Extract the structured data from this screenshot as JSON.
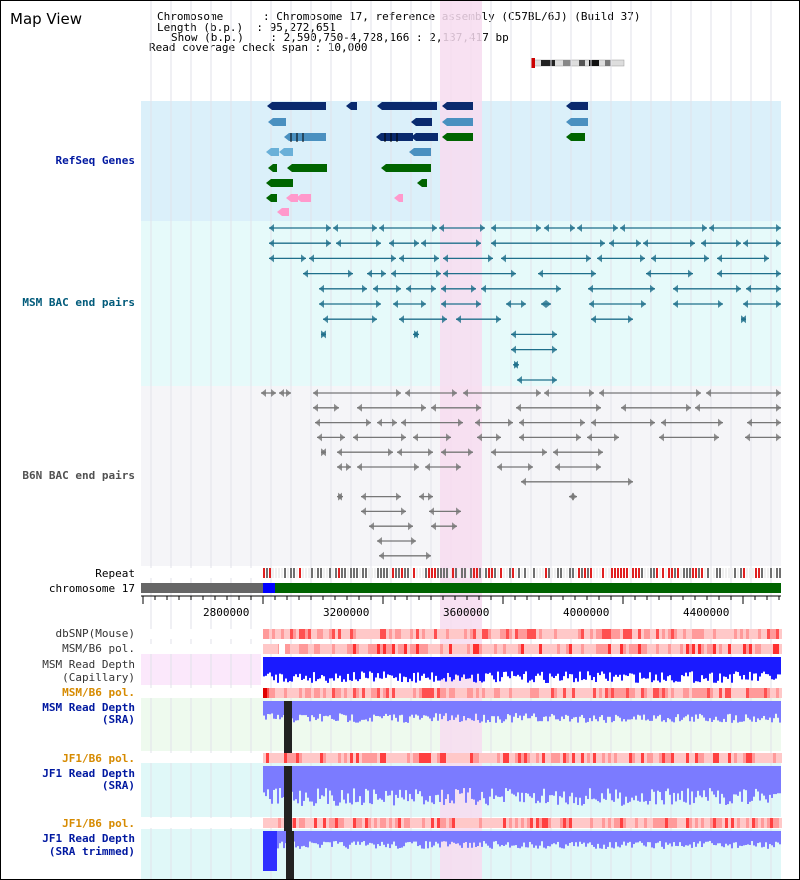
{
  "header": {
    "title": "Map View",
    "info_lines": [
      "Chromosome      : Chromosome 17, reference assembly (C57BL/6J) (Build 37)",
      "Length (b.p.)  : 95,272,651",
      "Show (b.p.)    : 2,590,750-4,728,166 : 2,137,417 bp",
      "Read coverage check span : 10,000"
    ]
  },
  "tracks": {
    "refseq": "RefSeq Genes",
    "msm_bac": "MSM BAC end pairs",
    "b6n_bac": "B6N BAC end pairs",
    "repeat": "Repeat",
    "chromosome": "chromosome 17",
    "dbsnp": "dbSNP(Mouse)",
    "msm_b6_pol_1": "MSM/B6 pol.",
    "msm_read_depth_cap_1": "MSM Read Depth",
    "msm_read_depth_cap_2": "(Capillary)",
    "msm_b6_pol_2": "MSM/B6 pol.",
    "msm_read_depth_sra_1": "MSM Read Depth",
    "msm_read_depth_sra_2": "(SRA)",
    "jf1_b6_pol_1": "JF1/B6 pol.",
    "jf1_read_depth_1": "JF1 Read Depth",
    "jf1_read_depth_2": "(SRA)",
    "jf1_b6_pol_2": "JF1/B6 pol.",
    "jf1_read_depth_trim_1": "JF1 Read Depth",
    "jf1_read_depth_trim_2": "(SRA trimmed)"
  },
  "axis": {
    "ticks": [
      "2800000",
      "3200000",
      "3600000",
      "4000000",
      "4400000"
    ]
  },
  "colors": {
    "refseq_bg": "#dbf0fa",
    "msm_bg": "#e6fafa",
    "b6n_bg": "#f5f5f8",
    "highlight": "#f7dcf0",
    "msm_label": "#005a7a",
    "b6n_label": "#505050",
    "refseq_label": "#0018a0",
    "pol_label": "#d68a00",
    "depth_label": "#0018a0",
    "depth_blue": "#1a1aff",
    "depth_light": "#7b7bff",
    "pol_red": "#ff5050",
    "chrom_green": "#006400"
  }
}
